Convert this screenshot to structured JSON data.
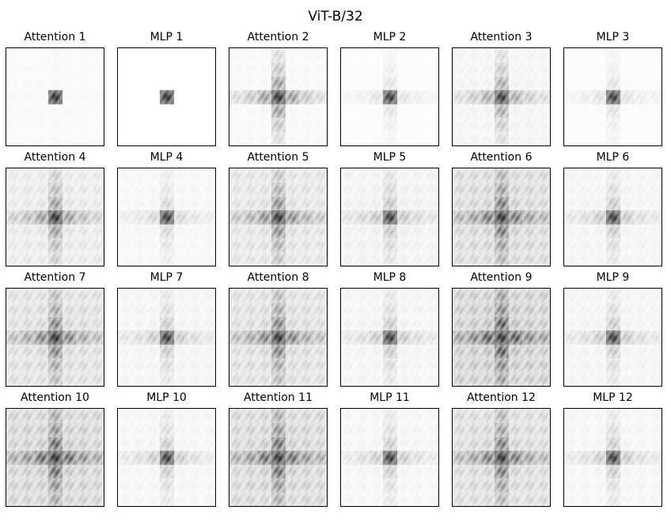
{
  "title": "ViT-B/32",
  "panels": [
    {
      "label": "Attention 1",
      "kind": "attention",
      "layer": 1,
      "bg": 0.04,
      "cross": 0.0,
      "center": 0.95
    },
    {
      "label": "MLP 1",
      "kind": "mlp",
      "layer": 1,
      "bg": 0.0,
      "cross": 0.0,
      "center": 0.95
    },
    {
      "label": "Attention 2",
      "kind": "attention",
      "layer": 2,
      "bg": 0.05,
      "cross": 0.45,
      "center": 0.95
    },
    {
      "label": "MLP 2",
      "kind": "mlp",
      "layer": 2,
      "bg": 0.02,
      "cross": 0.12,
      "center": 0.9
    },
    {
      "label": "Attention 3",
      "kind": "attention",
      "layer": 3,
      "bg": 0.08,
      "cross": 0.35,
      "center": 0.9
    },
    {
      "label": "MLP 3",
      "kind": "mlp",
      "layer": 3,
      "bg": 0.03,
      "cross": 0.12,
      "center": 0.9
    },
    {
      "label": "Attention 4",
      "kind": "attention",
      "layer": 4,
      "bg": 0.16,
      "cross": 0.35,
      "center": 0.95
    },
    {
      "label": "MLP 4",
      "kind": "mlp",
      "layer": 4,
      "bg": 0.06,
      "cross": 0.15,
      "center": 0.9
    },
    {
      "label": "Attention 5",
      "kind": "attention",
      "layer": 5,
      "bg": 0.2,
      "cross": 0.38,
      "center": 0.95
    },
    {
      "label": "MLP 5",
      "kind": "mlp",
      "layer": 5,
      "bg": 0.1,
      "cross": 0.2,
      "center": 0.9
    },
    {
      "label": "Attention 6",
      "kind": "attention",
      "layer": 6,
      "bg": 0.28,
      "cross": 0.42,
      "center": 0.95
    },
    {
      "label": "MLP 6",
      "kind": "mlp",
      "layer": 6,
      "bg": 0.08,
      "cross": 0.2,
      "center": 0.9
    },
    {
      "label": "Attention 7",
      "kind": "attention",
      "layer": 7,
      "bg": 0.24,
      "cross": 0.4,
      "center": 0.95
    },
    {
      "label": "MLP 7",
      "kind": "mlp",
      "layer": 7,
      "bg": 0.08,
      "cross": 0.2,
      "center": 0.9
    },
    {
      "label": "Attention 8",
      "kind": "attention",
      "layer": 8,
      "bg": 0.24,
      "cross": 0.4,
      "center": 0.95
    },
    {
      "label": "MLP 8",
      "kind": "mlp",
      "layer": 8,
      "bg": 0.08,
      "cross": 0.2,
      "center": 0.9
    },
    {
      "label": "Attention 9",
      "kind": "attention",
      "layer": 9,
      "bg": 0.36,
      "cross": 0.48,
      "center": 0.95
    },
    {
      "label": "MLP 9",
      "kind": "mlp",
      "layer": 9,
      "bg": 0.08,
      "cross": 0.2,
      "center": 0.9
    },
    {
      "label": "Attention 10",
      "kind": "attention",
      "layer": 10,
      "bg": 0.32,
      "cross": 0.45,
      "center": 0.95
    },
    {
      "label": "MLP 10",
      "kind": "mlp",
      "layer": 10,
      "bg": 0.07,
      "cross": 0.2,
      "center": 0.9
    },
    {
      "label": "Attention 11",
      "kind": "attention",
      "layer": 11,
      "bg": 0.3,
      "cross": 0.45,
      "center": 0.95
    },
    {
      "label": "MLP 11",
      "kind": "mlp",
      "layer": 11,
      "bg": 0.07,
      "cross": 0.2,
      "center": 0.9
    },
    {
      "label": "Attention 12",
      "kind": "attention",
      "layer": 12,
      "bg": 0.27,
      "cross": 0.42,
      "center": 0.95
    },
    {
      "label": "MLP 12",
      "kind": "mlp",
      "layer": 12,
      "bg": 0.07,
      "cross": 0.2,
      "center": 0.9
    }
  ]
}
